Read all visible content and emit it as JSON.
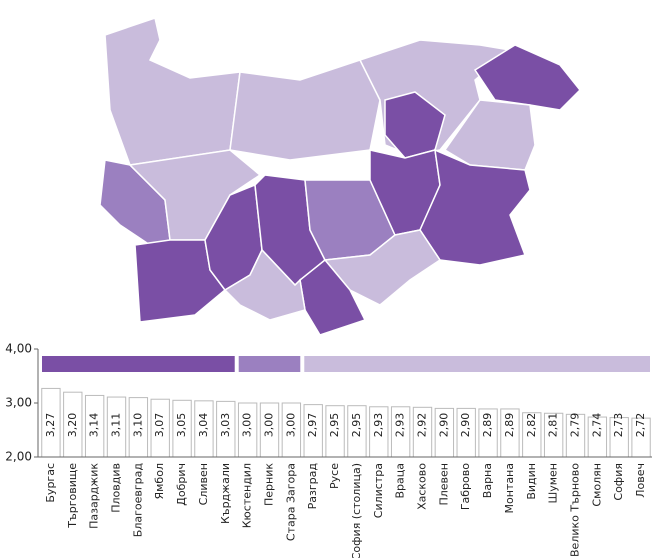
{
  "chart_data": {
    "type": "bar",
    "categories": [
      "Бургас",
      "Търговище",
      "Пазарджик",
      "Пловдив",
      "Благоевград",
      "Ямбол",
      "Добрич",
      "Сливен",
      "Кърджали",
      "Кюстендил",
      "Перник",
      "Стара Загора",
      "Разград",
      "Русе",
      "София (столица)",
      "Силистра",
      "Враца",
      "Хасково",
      "Плевен",
      "Габрово",
      "Варна",
      "Монтана",
      "Видин",
      "Шумен",
      "Велико Търново",
      "Смолян",
      "София",
      "Ловеч"
    ],
    "values": [
      3.27,
      3.2,
      3.14,
      3.11,
      3.1,
      3.07,
      3.05,
      3.04,
      3.03,
      3.0,
      3.0,
      3.0,
      2.97,
      2.95,
      2.95,
      2.93,
      2.93,
      2.92,
      2.9,
      2.9,
      2.89,
      2.89,
      2.82,
      2.81,
      2.79,
      2.74,
      2.73,
      2.72
    ],
    "value_labels": [
      "3,27",
      "3,20",
      "3,14",
      "3,11",
      "3,10",
      "3,07",
      "3,05",
      "3,04",
      "3,03",
      "3,00",
      "3,00",
      "3,00",
      "2,97",
      "2,95",
      "2,95",
      "2,93",
      "2,93",
      "2,92",
      "2,90",
      "2,90",
      "2,89",
      "2,89",
      "2,82",
      "2,81",
      "2,79",
      "2,74",
      "2,73",
      "2,72"
    ],
    "colors": [
      "#7a4fa5",
      "#7a4fa5",
      "#7a4fa5",
      "#7a4fa5",
      "#7a4fa5",
      "#7a4fa5",
      "#7a4fa5",
      "#7a4fa5",
      "#7a4fa5",
      "#9b80c0",
      "#9b80c0",
      "#9b80c0",
      "#c9bcdc",
      "#c9bcdc",
      "#c9bcdc",
      "#c9bcdc",
      "#c9bcdc",
      "#c9bcdc",
      "#c9bcdc",
      "#c9bcdc",
      "#c9bcdc",
      "#c9bcdc",
      "#c9bcdc",
      "#c9bcdc",
      "#c9bcdc",
      "#c9bcdc",
      "#c9bcdc",
      "#c9bcdc"
    ],
    "ylim": [
      2,
      4
    ],
    "yticks": [
      {
        "value": 2,
        "label": "2,00"
      },
      {
        "value": 3,
        "label": "3,00"
      },
      {
        "value": 4,
        "label": "4,00"
      }
    ]
  }
}
